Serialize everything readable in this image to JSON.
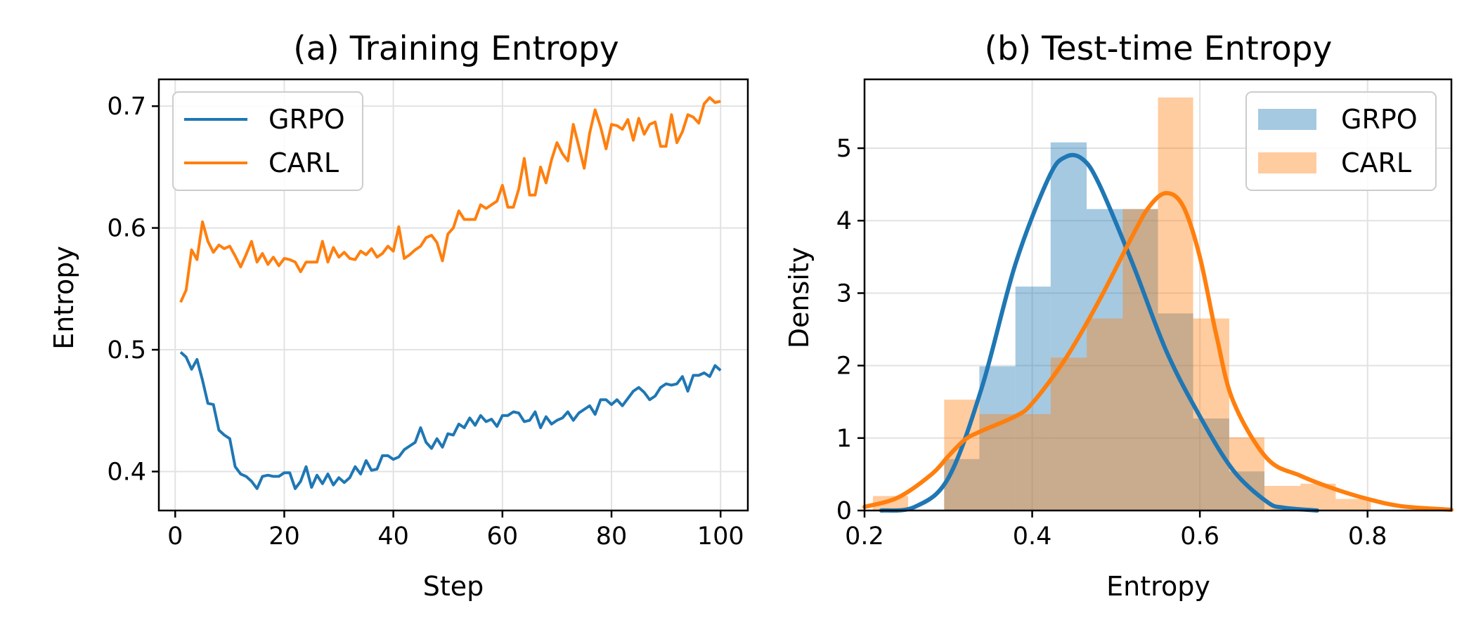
{
  "colors": {
    "grpo": "#1f77b4",
    "carl": "#ff7f0e"
  },
  "chart_data": [
    {
      "type": "line",
      "title": "(a) Training Entropy",
      "xlabel": "Step",
      "ylabel": "Entropy",
      "xlim": [
        -3,
        105
      ],
      "ylim": [
        0.368,
        0.722
      ],
      "xticks": [
        0,
        20,
        40,
        60,
        80,
        100
      ],
      "xtick_labels": [
        "0",
        "20",
        "40",
        "60",
        "80",
        "100"
      ],
      "yticks": [
        0.4,
        0.5,
        0.6,
        0.7
      ],
      "ytick_labels": [
        "0.4",
        "0.5",
        "0.6",
        "0.7"
      ],
      "grid": true,
      "legend": "upper-left",
      "legend_labels": [
        "GRPO",
        "CARL"
      ],
      "x": [
        1,
        2,
        3,
        4,
        5,
        6,
        7,
        8,
        9,
        10,
        11,
        12,
        13,
        14,
        15,
        16,
        17,
        18,
        19,
        20,
        21,
        22,
        23,
        24,
        25,
        26,
        27,
        28,
        29,
        30,
        31,
        32,
        33,
        34,
        35,
        36,
        37,
        38,
        39,
        40,
        41,
        42,
        43,
        44,
        45,
        46,
        47,
        48,
        49,
        50,
        51,
        52,
        53,
        54,
        55,
        56,
        57,
        58,
        59,
        60,
        61,
        62,
        63,
        64,
        65,
        66,
        67,
        68,
        69,
        70,
        71,
        72,
        73,
        74,
        75,
        76,
        77,
        78,
        79,
        80,
        81,
        82,
        83,
        84,
        85,
        86,
        87,
        88,
        89,
        90,
        91,
        92,
        93,
        94,
        95,
        96,
        97,
        98,
        99,
        100
      ],
      "series": [
        {
          "name": "GRPO",
          "values": [
            0.498,
            0.494,
            0.484,
            0.492,
            0.475,
            0.456,
            0.455,
            0.434,
            0.43,
            0.427,
            0.404,
            0.398,
            0.396,
            0.392,
            0.386,
            0.396,
            0.397,
            0.396,
            0.396,
            0.399,
            0.399,
            0.386,
            0.392,
            0.404,
            0.387,
            0.397,
            0.39,
            0.398,
            0.389,
            0.395,
            0.391,
            0.395,
            0.404,
            0.398,
            0.409,
            0.401,
            0.402,
            0.413,
            0.413,
            0.41,
            0.412,
            0.418,
            0.421,
            0.424,
            0.436,
            0.424,
            0.419,
            0.427,
            0.42,
            0.431,
            0.43,
            0.439,
            0.436,
            0.444,
            0.438,
            0.446,
            0.441,
            0.443,
            0.437,
            0.446,
            0.446,
            0.449,
            0.448,
            0.441,
            0.442,
            0.449,
            0.436,
            0.445,
            0.439,
            0.442,
            0.444,
            0.449,
            0.442,
            0.448,
            0.451,
            0.454,
            0.447,
            0.459,
            0.459,
            0.455,
            0.459,
            0.454,
            0.46,
            0.466,
            0.469,
            0.465,
            0.459,
            0.462,
            0.469,
            0.472,
            0.471,
            0.472,
            0.478,
            0.466,
            0.479,
            0.479,
            0.481,
            0.478,
            0.487,
            0.483
          ]
        },
        {
          "name": "CARL",
          "values": [
            0.539,
            0.549,
            0.582,
            0.574,
            0.605,
            0.589,
            0.58,
            0.586,
            0.583,
            0.585,
            0.577,
            0.568,
            0.578,
            0.589,
            0.572,
            0.579,
            0.57,
            0.576,
            0.569,
            0.575,
            0.574,
            0.572,
            0.564,
            0.572,
            0.572,
            0.572,
            0.589,
            0.572,
            0.584,
            0.576,
            0.58,
            0.575,
            0.574,
            0.581,
            0.578,
            0.583,
            0.576,
            0.579,
            0.585,
            0.581,
            0.601,
            0.575,
            0.578,
            0.582,
            0.585,
            0.592,
            0.594,
            0.588,
            0.573,
            0.595,
            0.6,
            0.614,
            0.607,
            0.607,
            0.607,
            0.619,
            0.616,
            0.619,
            0.622,
            0.635,
            0.617,
            0.617,
            0.632,
            0.657,
            0.627,
            0.627,
            0.65,
            0.637,
            0.656,
            0.67,
            0.661,
            0.655,
            0.685,
            0.667,
            0.649,
            0.678,
            0.697,
            0.683,
            0.665,
            0.685,
            0.684,
            0.681,
            0.689,
            0.672,
            0.69,
            0.677,
            0.685,
            0.687,
            0.667,
            0.667,
            0.693,
            0.67,
            0.679,
            0.693,
            0.691,
            0.686,
            0.702,
            0.707,
            0.703,
            0.704
          ]
        }
      ]
    },
    {
      "type": "histogram",
      "title": "(b) Test-time Entropy",
      "xlabel": "Entropy",
      "ylabel": "Density",
      "xlim": [
        0.2,
        0.9
      ],
      "ylim": [
        0,
        5.95
      ],
      "xticks": [
        0.2,
        0.4,
        0.6,
        0.8
      ],
      "xtick_labels": [
        "0.2",
        "0.4",
        "0.6",
        "0.8"
      ],
      "yticks": [
        0,
        1,
        2,
        3,
        4,
        5
      ],
      "ytick_labels": [
        "0",
        "1",
        "2",
        "3",
        "4",
        "5"
      ],
      "grid": true,
      "legend": "upper-right",
      "legend_labels": [
        "GRPO",
        "CARL"
      ],
      "series": [
        {
          "name": "GRPO",
          "alpha": 0.4,
          "bins": [
            [
              0.295,
              0.337,
              0.71
            ],
            [
              0.337,
              0.38,
              1.99
            ],
            [
              0.38,
              0.422,
              3.09
            ],
            [
              0.422,
              0.465,
              5.08
            ],
            [
              0.465,
              0.508,
              4.16
            ],
            [
              0.508,
              0.55,
              4.16
            ],
            [
              0.55,
              0.592,
              2.72
            ],
            [
              0.592,
              0.635,
              1.27
            ],
            [
              0.635,
              0.677,
              0.54
            ]
          ],
          "kde_x": [
            0.22,
            0.26,
            0.3,
            0.34,
            0.38,
            0.42,
            0.44,
            0.46,
            0.48,
            0.52,
            0.56,
            0.6,
            0.64,
            0.68,
            0.7,
            0.74
          ],
          "kde_y": [
            0.0,
            0.05,
            0.45,
            1.7,
            3.4,
            4.6,
            4.88,
            4.85,
            4.5,
            3.4,
            2.2,
            1.3,
            0.55,
            0.12,
            0.04,
            0.0
          ]
        },
        {
          "name": "CARL",
          "alpha": 0.4,
          "bins": [
            [
              0.21,
              0.252,
              0.2
            ],
            [
              0.295,
              0.337,
              1.53
            ],
            [
              0.337,
              0.38,
              1.33
            ],
            [
              0.38,
              0.422,
              1.33
            ],
            [
              0.422,
              0.465,
              2.11
            ],
            [
              0.465,
              0.508,
              2.65
            ],
            [
              0.508,
              0.55,
              4.16
            ],
            [
              0.55,
              0.592,
              5.7
            ],
            [
              0.592,
              0.635,
              2.65
            ],
            [
              0.635,
              0.677,
              1.01
            ],
            [
              0.677,
              0.72,
              0.34
            ],
            [
              0.72,
              0.762,
              0.37
            ],
            [
              0.762,
              0.804,
              0.16
            ]
          ],
          "kde_x": [
            0.2,
            0.24,
            0.28,
            0.3,
            0.32,
            0.34,
            0.38,
            0.4,
            0.44,
            0.48,
            0.52,
            0.54,
            0.56,
            0.58,
            0.6,
            0.62,
            0.64,
            0.68,
            0.72,
            0.76,
            0.8,
            0.84,
            0.9
          ],
          "kde_y": [
            0.05,
            0.18,
            0.5,
            0.75,
            0.98,
            1.1,
            1.3,
            1.48,
            2.1,
            2.9,
            3.8,
            4.2,
            4.38,
            4.2,
            3.5,
            2.4,
            1.5,
            0.72,
            0.48,
            0.3,
            0.16,
            0.06,
            0.01
          ]
        }
      ]
    }
  ]
}
